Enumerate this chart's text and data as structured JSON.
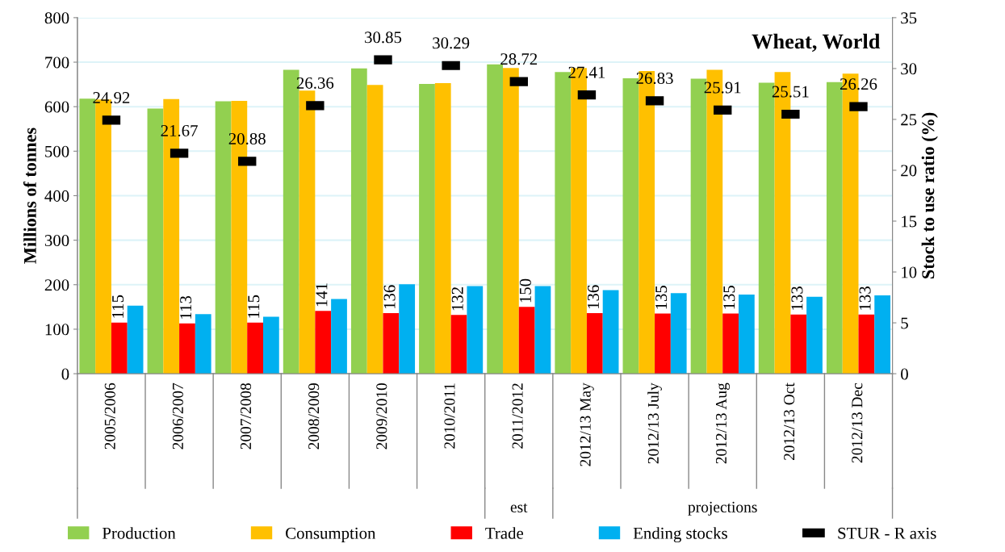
{
  "chart_data": {
    "type": "bar",
    "title": "Wheat, World",
    "ylabel": "Millions of tonnes",
    "y2label": "Stock to use ratio (%)",
    "categories": [
      "2005/2006",
      "2006/2007",
      "2007/2008",
      "2008/2009",
      "2009/2010",
      "2010/2011",
      "2011/2012",
      "2012/13 May",
      "2012/13 July",
      "2012/13 Aug",
      "2012/13 Oct",
      "2012/13 Dec"
    ],
    "series": [
      {
        "name": "Production",
        "color": "#92d050",
        "values": [
          618,
          596,
          612,
          683,
          686,
          651,
          695,
          678,
          664,
          663,
          654,
          655
        ]
      },
      {
        "name": "Consumption",
        "color": "#ffc000",
        "values": [
          616,
          617,
          613,
          636,
          649,
          653,
          687,
          687,
          680,
          683,
          678,
          674
        ]
      },
      {
        "name": "Trade",
        "color": "#ff0000",
        "values": [
          115,
          113,
          115,
          141,
          136,
          132,
          150,
          136,
          135,
          135,
          133,
          133
        ],
        "value_labels": [
          "115",
          "113",
          "115",
          "141",
          "136",
          "132",
          "150",
          "136",
          "135",
          "135",
          "133",
          "133"
        ]
      },
      {
        "name": "Ending stocks",
        "color": "#00b0f0",
        "values": [
          153,
          134,
          128,
          168,
          201,
          197,
          197,
          188,
          181,
          178,
          173,
          176
        ]
      },
      {
        "name": "STUR - R axis",
        "type": "scatter",
        "axis": "y2",
        "color": "#000000",
        "values": [
          24.92,
          21.67,
          20.88,
          26.36,
          30.85,
          30.29,
          28.72,
          27.41,
          26.83,
          25.91,
          25.51,
          26.26
        ],
        "value_labels": [
          "24.92",
          "21.67",
          "20.88",
          "26.36",
          "30.85",
          "30.29",
          "28.72",
          "27.41",
          "26.83",
          "25.91",
          "25.51",
          "26.26"
        ]
      }
    ],
    "annotations": [
      "est",
      "projections"
    ],
    "ylim": [
      0,
      800
    ],
    "yticks": [
      0,
      100,
      200,
      300,
      400,
      500,
      600,
      700,
      800
    ],
    "y2lim": [
      0,
      35
    ],
    "y2ticks": [
      0,
      5,
      10,
      15,
      20,
      25,
      30,
      35
    ],
    "grid": "y",
    "legend": "bottom"
  }
}
